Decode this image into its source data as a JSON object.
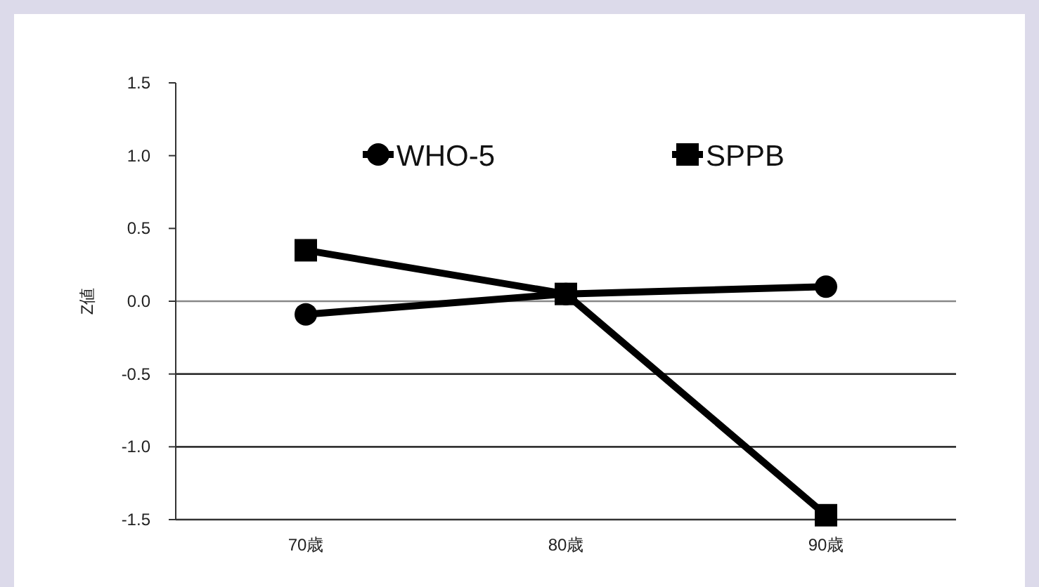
{
  "chart_data": {
    "type": "line",
    "ylabel": "Z値",
    "categories": [
      "70歳",
      "80歳",
      "90歳"
    ],
    "series": [
      {
        "name": "WHO-5",
        "color": "#000000",
        "marker": "circle",
        "values": [
          -0.09,
          0.05,
          0.1
        ]
      },
      {
        "name": "SPPB",
        "color": "#000000",
        "marker": "square",
        "values": [
          0.35,
          0.05,
          -1.47
        ]
      }
    ],
    "ylim": [
      -1.5,
      1.5
    ],
    "yticks": [
      {
        "value": -1.5,
        "label": "-1.5"
      },
      {
        "value": -1,
        "label": "-1.0"
      },
      {
        "value": -0.5,
        "label": "-0.5"
      },
      {
        "value": 0,
        "label": "0.0"
      },
      {
        "value": 0.5,
        "label": "0.5"
      },
      {
        "value": 1,
        "label": "1.0"
      },
      {
        "value": 1.5,
        "label": "1.5"
      }
    ],
    "ref_lines": [
      {
        "axis": "y",
        "value": 0,
        "color": "#888888"
      },
      {
        "axis": "y",
        "value": -0.5,
        "color": "#333333"
      },
      {
        "axis": "y",
        "value": -1,
        "color": "#333333"
      }
    ],
    "legend": "top",
    "line_style": "solid"
  }
}
